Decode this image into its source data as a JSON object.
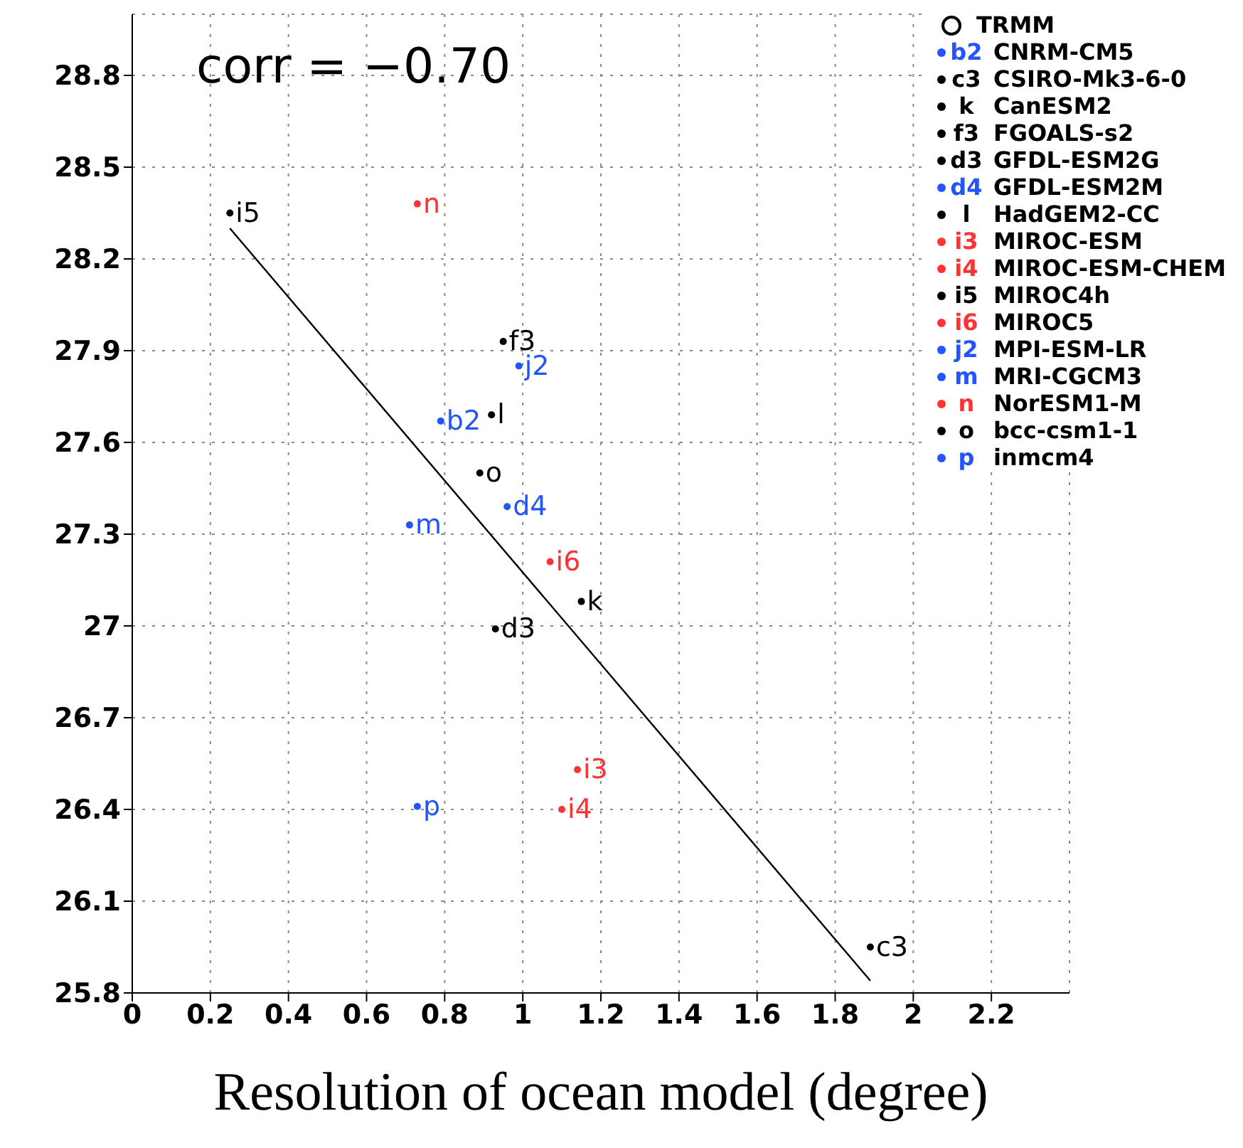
{
  "chart_data": {
    "type": "scatter",
    "xlabel": "Resolution of ocean model (degree)",
    "xlim": [
      0,
      2.4
    ],
    "xticks": [
      0,
      0.2,
      0.4,
      0.6,
      0.8,
      1,
      1.2,
      1.4,
      1.6,
      1.8,
      2,
      2.2
    ],
    "ylim": [
      25.8,
      29.0
    ],
    "yticks": [
      25.8,
      26.1,
      26.4,
      26.7,
      27,
      27.3,
      27.6,
      27.9,
      28.2,
      28.5,
      28.8
    ],
    "grid": true,
    "legend": "top right",
    "annotations": [
      "corr = −0.70",
      "TRMM"
    ],
    "series": [
      {
        "name": "CNRM-CM5",
        "color": "#2255ff",
        "x": [
          0.79
        ],
        "values": [
          27.67
        ],
        "value_labels": [
          "b2"
        ]
      },
      {
        "name": "CSIRO-Mk3-6-0",
        "color": "#000000",
        "x": [
          1.89
        ],
        "values": [
          25.95
        ],
        "value_labels": [
          "c3"
        ]
      },
      {
        "name": "CanESM2",
        "color": "#000000",
        "x": [
          1.15
        ],
        "values": [
          27.08
        ],
        "value_labels": [
          "k"
        ]
      },
      {
        "name": "FGOALS-s2",
        "color": "#000000",
        "x": [
          0.95
        ],
        "values": [
          27.93
        ],
        "value_labels": [
          "f3"
        ]
      },
      {
        "name": "GFDL-ESM2G",
        "color": "#000000",
        "x": [
          0.93
        ],
        "values": [
          26.99
        ],
        "value_labels": [
          "d3"
        ]
      },
      {
        "name": "GFDL-ESM2M",
        "color": "#2255ff",
        "x": [
          0.96
        ],
        "values": [
          27.39
        ],
        "value_labels": [
          "d4"
        ]
      },
      {
        "name": "HadGEM2-CC",
        "color": "#000000",
        "x": [
          0.92
        ],
        "values": [
          27.69
        ],
        "value_labels": [
          "l"
        ]
      },
      {
        "name": "MIROC-ESM",
        "color": "#ff3333",
        "x": [
          1.14
        ],
        "values": [
          26.53
        ],
        "value_labels": [
          "i3"
        ]
      },
      {
        "name": "MIROC-ESM-CHEM",
        "color": "#ff3333",
        "x": [
          1.1
        ],
        "values": [
          26.4
        ],
        "value_labels": [
          "i4"
        ]
      },
      {
        "name": "MIROC4h",
        "color": "#000000",
        "x": [
          0.25
        ],
        "values": [
          28.35
        ],
        "value_labels": [
          "i5"
        ]
      },
      {
        "name": "MIROC5",
        "color": "#ff3333",
        "x": [
          1.07
        ],
        "values": [
          27.21
        ],
        "value_labels": [
          "i6"
        ]
      },
      {
        "name": "MPI-ESM-LR",
        "color": "#2255ff",
        "x": [
          0.99
        ],
        "values": [
          27.85
        ],
        "value_labels": [
          "j2"
        ]
      },
      {
        "name": "MRI-CGCM3",
        "color": "#2255ff",
        "x": [
          0.71
        ],
        "values": [
          27.33
        ],
        "value_labels": [
          "m"
        ]
      },
      {
        "name": "NorESM1-M",
        "color": "#ff3333",
        "x": [
          0.73
        ],
        "values": [
          28.38
        ],
        "value_labels": [
          "n"
        ]
      },
      {
        "name": "bcc-csm1-1",
        "color": "#000000",
        "x": [
          0.89
        ],
        "values": [
          27.5
        ],
        "value_labels": [
          "o"
        ]
      },
      {
        "name": "inmcm4",
        "color": "#2255ff",
        "x": [
          0.73
        ],
        "values": [
          26.41
        ],
        "value_labels": [
          "p"
        ]
      },
      {
        "type": "line",
        "color": "#000000",
        "x": [
          0.25,
          1.89
        ],
        "values": [
          28.3,
          25.84
        ]
      }
    ]
  }
}
